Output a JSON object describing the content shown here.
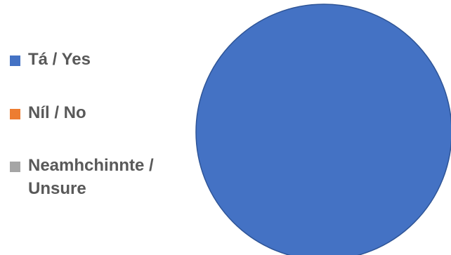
{
  "chart_data": {
    "type": "pie",
    "title": "",
    "legend_position": "left",
    "slices": [
      {
        "label": "Tá / Yes",
        "value": 100,
        "color": "#4472C4"
      },
      {
        "label": "Níl / No",
        "value": 0,
        "color": "#ED7D31"
      },
      {
        "label": "Neamhchinnte / Unsure",
        "value": 0,
        "color": "#A5A5A5"
      }
    ]
  }
}
